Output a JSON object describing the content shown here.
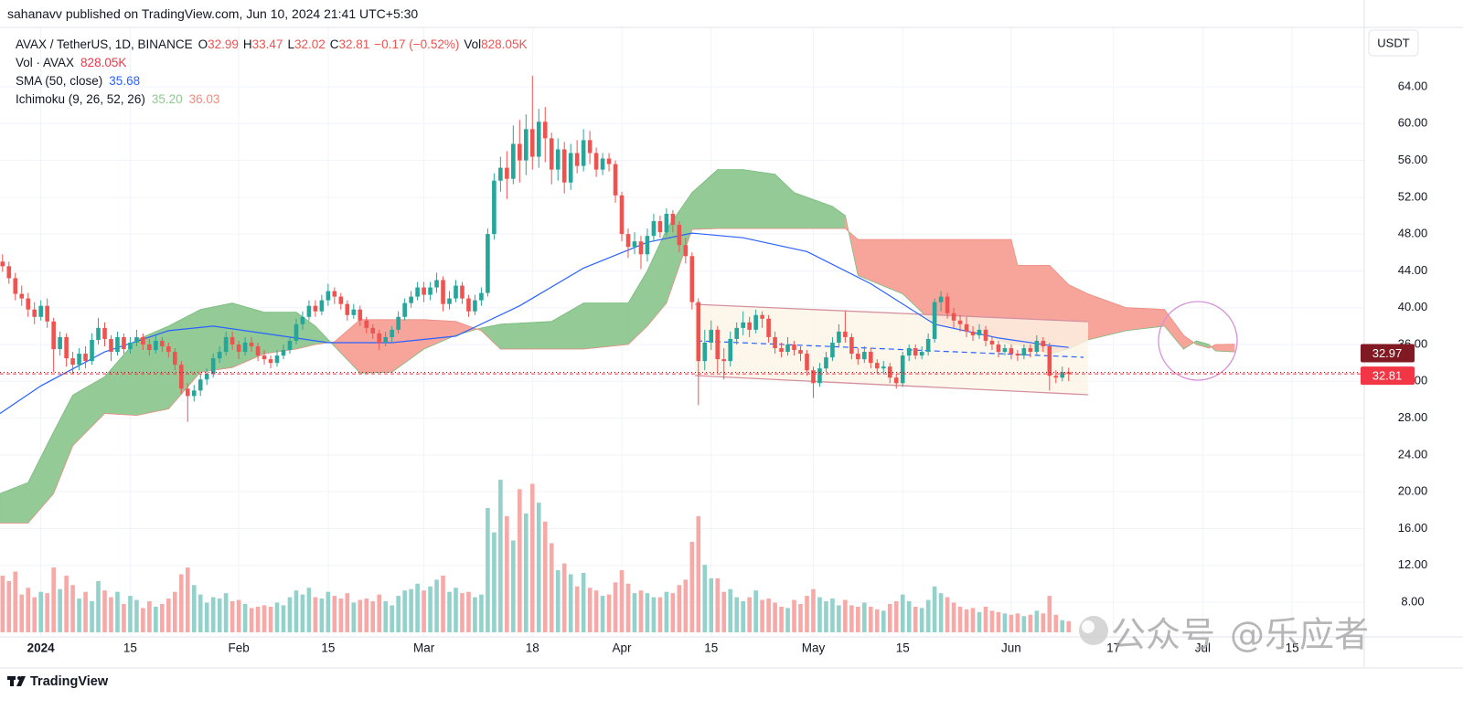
{
  "header": {
    "published": "sahanavv published on TradingView.com, Jun 10, 2024 21:41 UTC+5:30"
  },
  "chart_data": {
    "type": "candlestick",
    "symbol": "AVAX / TetherUS, 1D, BINANCE",
    "legend_fields": [
      {
        "label": "O",
        "value": 32.99
      },
      {
        "label": "H",
        "value": 33.47
      },
      {
        "label": "L",
        "value": 32.02
      },
      {
        "label": "C",
        "value": 32.81
      },
      {
        "label": "−0.17 (−0.52%)"
      },
      {
        "label": "Vol",
        "value": "828.05K"
      }
    ],
    "indicators": [
      {
        "name": "Vol · AVAX",
        "values": [
          "828.05K"
        ],
        "colors": [
          "#f23645"
        ]
      },
      {
        "name": "SMA (50, close)",
        "values": [
          "35.68"
        ],
        "colors": [
          "#2962ff"
        ]
      },
      {
        "name": "Ichimoku (9, 26, 52, 26)",
        "values": [
          "35.20",
          "36.03"
        ],
        "colors": [
          "#8cc98e",
          "#f08a80"
        ]
      }
    ],
    "currency": "USDT",
    "up_color": "#26a69a",
    "down_color": "#ef5350",
    "volume_up_color": "#92d2cb",
    "volume_down_color": "#f6a9a6",
    "x": [
      -6,
      -5,
      -4,
      -3,
      -2,
      -1,
      0,
      1,
      2,
      3,
      4,
      5,
      6,
      7,
      8,
      9,
      10,
      11,
      12,
      13,
      14,
      15,
      16,
      17,
      18,
      19,
      20,
      21,
      22,
      23,
      24,
      25,
      26,
      27,
      28,
      29,
      30,
      31,
      32,
      33,
      34,
      35,
      36,
      37,
      38,
      39,
      40,
      41,
      42,
      43,
      44,
      45,
      46,
      47,
      48,
      49,
      50,
      51,
      52,
      53,
      54,
      55,
      56,
      57,
      58,
      59,
      60,
      61,
      62,
      63,
      64,
      65,
      66,
      67,
      68,
      69,
      70,
      71,
      72,
      73,
      74,
      75,
      76,
      77,
      78,
      79,
      80,
      81,
      82,
      83,
      84,
      85,
      86,
      87,
      88,
      89,
      90,
      91,
      92,
      93,
      94,
      95,
      96,
      97,
      98,
      99,
      100,
      101,
      102,
      103,
      104,
      105,
      106,
      107,
      108,
      109,
      110,
      111,
      112,
      113,
      114,
      115,
      116,
      117,
      118,
      119,
      120,
      121,
      122,
      123,
      124,
      125,
      126,
      127,
      128,
      129,
      130,
      131,
      132,
      133,
      134,
      135,
      136,
      137,
      138,
      139,
      140,
      141,
      142,
      143,
      144,
      145,
      146,
      147,
      148,
      149,
      150,
      151,
      152,
      153,
      154,
      155,
      156,
      157,
      158,
      159,
      160,
      161
    ],
    "open": [
      45.0,
      44.5,
      43.2,
      41.5,
      41.0,
      39.8,
      39.0,
      40.2,
      38.5,
      35.5,
      36.8,
      34.5,
      33.8,
      35.0,
      34.2,
      36.5,
      37.8,
      36.6,
      35.2,
      36.8,
      35.5,
      36.2,
      36.8,
      36.0,
      35.4,
      36.4,
      35.8,
      35.2,
      33.8,
      31.2,
      30.4,
      31.0,
      32.2,
      32.8,
      34.5,
      35.2,
      36.8,
      36.0,
      35.2,
      36.2,
      35.8,
      34.8,
      34.4,
      34.0,
      34.8,
      35.4,
      36.4,
      38.2,
      39.0,
      40.2,
      39.6,
      40.8,
      41.8,
      41.2,
      40.4,
      39.2,
      39.8,
      38.6,
      37.8,
      37.2,
      36.2,
      36.8,
      37.6,
      39.0,
      40.5,
      41.2,
      42.2,
      41.4,
      42.2,
      43.0,
      40.4,
      41.0,
      42.4,
      41.0,
      39.6,
      40.8,
      41.6,
      48.0,
      53.8,
      55.2,
      54.0,
      57.8,
      56.0,
      59.4,
      56.4,
      60.2,
      58.4,
      55.0,
      57.2,
      53.6,
      56.8,
      55.4,
      58.2,
      56.8,
      55.0,
      56.2,
      55.6,
      52.2,
      48.0,
      46.6,
      47.2,
      45.8,
      47.8,
      49.4,
      48.2,
      50.2,
      49.0,
      46.8,
      45.6,
      40.6,
      34.2,
      36.2,
      37.6,
      34.4,
      34.2,
      36.6,
      37.8,
      38.4,
      37.6,
      39.2,
      38.8,
      36.8,
      35.6,
      35.2,
      36.0,
      35.4,
      35.0,
      33.2,
      31.8,
      33.4,
      34.6,
      36.2,
      37.4,
      36.8,
      35.0,
      34.4,
      35.2,
      34.0,
      33.4,
      33.6,
      32.4,
      31.8,
      34.8,
      35.6,
      34.8,
      35.2,
      36.6,
      40.6,
      41.2,
      39.4,
      38.6,
      38.2,
      37.4,
      37.0,
      37.6,
      36.4,
      36.0,
      35.2,
      35.6,
      35.0,
      34.8,
      35.6,
      35.2,
      36.4,
      35.8,
      32.6,
      32.4,
      32.99
    ],
    "high": [
      45.8,
      45.0,
      43.8,
      42.4,
      41.6,
      40.6,
      40.8,
      41.0,
      38.9,
      37.4,
      37.2,
      35.2,
      35.6,
      35.8,
      37.2,
      38.9,
      38.4,
      37.0,
      37.4,
      37.2,
      36.8,
      37.6,
      37.2,
      36.6,
      37.0,
      36.8,
      36.2,
      35.6,
      34.2,
      31.8,
      31.6,
      32.8,
      33.4,
      35.0,
      35.8,
      37.4,
      37.4,
      36.4,
      36.8,
      36.8,
      36.2,
      35.4,
      34.8,
      35.4,
      36.0,
      36.8,
      38.8,
      39.6,
      40.8,
      40.8,
      41.4,
      42.6,
      42.2,
      41.6,
      40.8,
      40.4,
      40.2,
      39.0,
      38.2,
      37.6,
      37.4,
      38.0,
      39.6,
      41.0,
      41.8,
      42.8,
      42.8,
      42.8,
      43.8,
      43.4,
      41.8,
      43.0,
      42.8,
      41.4,
      41.4,
      42.2,
      48.6,
      54.6,
      56.4,
      57.0,
      59.8,
      60.4,
      61.0,
      65.2,
      61.6,
      61.8,
      59.0,
      58.4,
      58.0,
      57.8,
      58.2,
      59.4,
      59.2,
      57.4,
      56.8,
      56.8,
      56.0,
      52.6,
      48.6,
      48.2,
      47.8,
      48.6,
      50.2,
      50.0,
      50.8,
      50.6,
      49.4,
      47.6,
      46.0,
      41.0,
      37.6,
      38.6,
      38.0,
      35.6,
      37.4,
      38.4,
      39.6,
      39.0,
      39.8,
      39.6,
      39.2,
      37.4,
      36.2,
      36.8,
      36.4,
      35.8,
      35.4,
      33.6,
      34.0,
      35.2,
      36.8,
      38.2,
      39.6,
      37.2,
      35.6,
      35.8,
      35.6,
      34.4,
      34.2,
      34.0,
      32.8,
      35.2,
      36.0,
      36.0,
      35.8,
      37.2,
      41.0,
      41.8,
      41.6,
      40.0,
      39.2,
      39.0,
      38.0,
      38.2,
      38.0,
      36.8,
      36.4,
      36.0,
      36.0,
      35.4,
      36.0,
      36.0,
      37.0,
      36.8,
      36.2,
      33.2,
      33.6,
      33.47
    ],
    "low": [
      43.9,
      42.6,
      40.8,
      40.2,
      39.0,
      38.2,
      38.6,
      37.8,
      33.0,
      34.8,
      33.6,
      32.8,
      33.2,
      33.4,
      33.8,
      36.0,
      35.8,
      34.2,
      34.8,
      35.0,
      35.0,
      35.8,
      35.4,
      34.8,
      35.0,
      35.2,
      34.6,
      33.2,
      30.6,
      27.6,
      29.8,
      30.4,
      31.6,
      32.4,
      34.0,
      34.8,
      35.4,
      34.4,
      34.8,
      35.2,
      34.2,
      33.8,
      33.4,
      33.6,
      34.4,
      35.0,
      36.0,
      37.6,
      38.6,
      39.0,
      39.2,
      40.2,
      40.4,
      39.8,
      38.6,
      38.8,
      38.0,
      37.2,
      36.6,
      35.4,
      35.8,
      36.2,
      37.2,
      38.6,
      40.0,
      40.8,
      40.6,
      40.8,
      41.6,
      39.6,
      39.8,
      40.6,
      40.4,
      39.0,
      39.2,
      40.2,
      41.2,
      47.4,
      52.6,
      51.8,
      53.4,
      53.6,
      54.4,
      55.0,
      55.2,
      55.8,
      53.4,
      53.8,
      52.4,
      52.8,
      54.6,
      54.8,
      55.6,
      54.2,
      54.4,
      54.8,
      51.4,
      47.2,
      45.4,
      45.8,
      44.2,
      45.0,
      47.2,
      47.6,
      47.8,
      48.2,
      46.0,
      44.8,
      39.8,
      29.4,
      33.2,
      35.4,
      33.0,
      32.2,
      33.6,
      36.0,
      37.0,
      36.8,
      37.2,
      37.8,
      36.2,
      35.0,
      34.6,
      34.8,
      34.8,
      34.2,
      32.6,
      30.2,
      31.4,
      33.0,
      34.2,
      35.8,
      36.2,
      34.4,
      33.8,
      34.0,
      33.4,
      32.8,
      32.8,
      31.8,
      31.2,
      31.4,
      34.2,
      34.4,
      34.4,
      34.8,
      36.2,
      39.6,
      38.8,
      37.8,
      37.4,
      36.8,
      36.4,
      36.6,
      35.8,
      35.4,
      34.6,
      34.8,
      34.4,
      34.2,
      34.4,
      34.6,
      34.8,
      35.2,
      31.0,
      31.8,
      32.0,
      32.02
    ],
    "close": [
      44.5,
      43.2,
      41.5,
      41.0,
      39.8,
      39.0,
      40.2,
      38.5,
      35.5,
      36.8,
      34.5,
      33.8,
      35.0,
      34.2,
      36.5,
      37.8,
      36.6,
      35.2,
      36.8,
      35.5,
      36.2,
      36.8,
      36.0,
      35.4,
      36.4,
      35.8,
      35.2,
      33.8,
      31.2,
      30.4,
      31.0,
      32.2,
      32.8,
      34.5,
      35.2,
      36.8,
      36.0,
      35.2,
      36.2,
      35.8,
      34.8,
      34.4,
      34.0,
      34.8,
      35.4,
      36.4,
      38.2,
      39.0,
      40.2,
      39.6,
      40.8,
      41.8,
      41.2,
      40.4,
      39.2,
      39.8,
      38.6,
      37.8,
      37.2,
      36.2,
      36.8,
      37.6,
      39.0,
      40.5,
      41.2,
      42.2,
      41.4,
      42.2,
      43.0,
      40.4,
      41.0,
      42.4,
      41.0,
      39.6,
      40.8,
      41.6,
      48.0,
      53.8,
      55.2,
      54.0,
      57.8,
      56.0,
      59.4,
      56.4,
      60.2,
      58.4,
      55.0,
      57.2,
      53.6,
      56.8,
      55.4,
      58.2,
      56.8,
      55.0,
      56.2,
      55.6,
      52.2,
      48.0,
      46.6,
      47.2,
      45.8,
      47.8,
      49.4,
      48.2,
      50.2,
      49.0,
      46.8,
      45.6,
      40.6,
      34.2,
      36.2,
      37.6,
      34.4,
      34.2,
      36.6,
      37.8,
      38.4,
      37.6,
      39.2,
      38.8,
      36.8,
      35.6,
      35.2,
      36.0,
      35.4,
      35.0,
      33.2,
      31.8,
      33.4,
      34.6,
      36.2,
      37.4,
      36.8,
      35.0,
      34.4,
      35.2,
      34.0,
      33.4,
      33.6,
      32.4,
      31.8,
      34.8,
      35.6,
      34.8,
      35.2,
      36.6,
      40.6,
      41.2,
      39.4,
      38.6,
      38.2,
      37.4,
      37.0,
      37.6,
      36.4,
      36.0,
      35.2,
      35.6,
      35.0,
      34.8,
      35.6,
      35.2,
      36.4,
      35.8,
      32.6,
      32.4,
      32.99,
      32.81
    ],
    "volume": [
      4200,
      3800,
      4500,
      2800,
      3300,
      2600,
      3000,
      2900,
      4800,
      3200,
      4200,
      3500,
      2500,
      3000,
      2300,
      3800,
      3100,
      2600,
      3000,
      2100,
      2700,
      2400,
      1800,
      2300,
      1900,
      2100,
      2500,
      3000,
      4300,
      4800,
      3500,
      2800,
      2200,
      2600,
      2500,
      2900,
      2300,
      2400,
      2100,
      1800,
      1900,
      2000,
      1900,
      2200,
      2000,
      2600,
      3100,
      2800,
      3300,
      2600,
      2500,
      3000,
      2700,
      2500,
      2900,
      2200,
      2400,
      2500,
      2300,
      2800,
      2300,
      2000,
      2700,
      3100,
      3200,
      3600,
      3100,
      3400,
      3900,
      4200,
      3000,
      3300,
      2900,
      3000,
      2600,
      2800,
      9200,
      7400,
      11300,
      8600,
      6800,
      10600,
      8800,
      11000,
      9600,
      8200,
      6600,
      4600,
      5100,
      4300,
      3400,
      4400,
      3300,
      3100,
      2700,
      2800,
      3700,
      4600,
      3600,
      2900,
      3100,
      2900,
      2600,
      2600,
      3000,
      2900,
      3500,
      3900,
      6700,
      8600,
      5000,
      4000,
      4000,
      3000,
      3200,
      2600,
      2300,
      2600,
      3100,
      2400,
      2500,
      2200,
      1900,
      1800,
      2400,
      2100,
      2700,
      3200,
      2600,
      2300,
      2500,
      2000,
      2400,
      2000,
      1900,
      2200,
      1900,
      1700,
      1600,
      2100,
      2300,
      2800,
      2300,
      1900,
      1800,
      2400,
      3400,
      2900,
      2600,
      2200,
      1900,
      1700,
      1800,
      1500,
      1900,
      1600,
      1500,
      1400,
      1300,
      1400,
      1200,
      1300,
      1600,
      1400,
      2700,
      1300,
      900,
      828.05
    ],
    "sma": {
      "color": "#2962ff",
      "x": [
        -6.4,
        0,
        10,
        20,
        27,
        35,
        45,
        55,
        65,
        75,
        85,
        95,
        102,
        110,
        120,
        130,
        140,
        150,
        158,
        161
      ],
      "values": [
        28.5,
        31.5,
        35.2,
        37.5,
        38.0,
        37.2,
        36.2,
        36.2,
        36.9,
        40.2,
        44.3,
        47.1,
        48.1,
        47.6,
        46.1,
        42.6,
        38.2,
        36.7,
        35.9,
        35.68
      ]
    },
    "ichimoku": {
      "up_color": "#93ca95",
      "down_color": "#f7a59b",
      "x": [
        -6.4,
        -2,
        2,
        5,
        10,
        15,
        20,
        25,
        30,
        35,
        40,
        43,
        46,
        50,
        55,
        60,
        65,
        69,
        72,
        80,
        85,
        92,
        95,
        98,
        102,
        106,
        110,
        115,
        118,
        124,
        126,
        128,
        135,
        140,
        145,
        148,
        152,
        153,
        158,
        161,
        164,
        170,
        176,
        179,
        181,
        183,
        184,
        187
      ],
      "span_a": [
        19.8,
        21.0,
        26.5,
        30.5,
        32.5,
        36.5,
        38.0,
        39.8,
        40.5,
        39.5,
        39.5,
        38.0,
        35.8,
        32.9,
        33.0,
        35.5,
        37.0,
        37.8,
        38.2,
        38.5,
        40.5,
        40.5,
        44.0,
        48.5,
        52.5,
        55.0,
        55.0,
        54.5,
        52.5,
        51.0,
        50.0,
        43.5,
        41.5,
        38.2,
        37.5,
        37.0,
        36.0,
        36.0,
        35.0,
        35.5,
        36.5,
        37.5,
        38.0,
        35.5,
        36.4,
        36.0,
        35.3,
        35.2
      ],
      "span_b": [
        16.6,
        16.6,
        19.8,
        25.0,
        28.5,
        28.3,
        29.0,
        33.0,
        33.5,
        35.0,
        35.5,
        36.0,
        36.3,
        38.7,
        38.7,
        38.7,
        38.5,
        37.5,
        35.5,
        35.5,
        35.5,
        36.0,
        38.0,
        40.5,
        48.5,
        48.6,
        48.6,
        48.6,
        48.6,
        48.6,
        48.6,
        47.4,
        47.4,
        47.4,
        47.4,
        47.4,
        47.4,
        44.6,
        44.6,
        42.5,
        41.5,
        40.0,
        39.8,
        37.0,
        36.0,
        35.6,
        36.0,
        36.03
      ]
    },
    "price_labels": [
      {
        "value": 32.97,
        "color": "#801922"
      },
      {
        "value": 32.81,
        "color": "#f23645"
      }
    ],
    "xlim": [
      -6.4,
      207.3
    ],
    "xticks": [
      {
        "value": 0,
        "label": "2024"
      },
      {
        "value": 14,
        "label": "15"
      },
      {
        "value": 31,
        "label": "Feb"
      },
      {
        "value": 45,
        "label": "15"
      },
      {
        "value": 60,
        "label": "Mar"
      },
      {
        "value": 77,
        "label": "18"
      },
      {
        "value": 91,
        "label": "Apr"
      },
      {
        "value": 105,
        "label": "15"
      },
      {
        "value": 121,
        "label": "May"
      },
      {
        "value": 135,
        "label": "15"
      },
      {
        "value": 152,
        "label": "Jun"
      },
      {
        "value": 168,
        "label": "17"
      },
      {
        "value": 182,
        "label": "Jul"
      },
      {
        "value": 196,
        "label": "15"
      }
    ],
    "ylim": [
      4.23,
      70.45
    ],
    "yticks": [
      {
        "value": 8,
        "label": "8.00"
      },
      {
        "value": 12,
        "label": "12.00"
      },
      {
        "value": 16,
        "label": "16.00"
      },
      {
        "value": 20,
        "label": "20.00"
      },
      {
        "value": 24,
        "label": "24.00"
      },
      {
        "value": 28,
        "label": "28.00"
      },
      {
        "value": 32,
        "label": "32.00"
      },
      {
        "value": 36,
        "label": "36.00"
      },
      {
        "value": 40,
        "label": "40.00"
      },
      {
        "value": 44,
        "label": "44.00"
      },
      {
        "value": 48,
        "label": "48.00"
      },
      {
        "value": 52,
        "label": "52.00"
      },
      {
        "value": 56,
        "label": "56.00"
      },
      {
        "value": 60,
        "label": "60.00"
      },
      {
        "value": 64,
        "label": "64.00"
      }
    ],
    "grid": true
  },
  "footer": {
    "brand": "TradingView"
  },
  "watermark": {
    "left": "公众号",
    "right": "@乐应者"
  }
}
